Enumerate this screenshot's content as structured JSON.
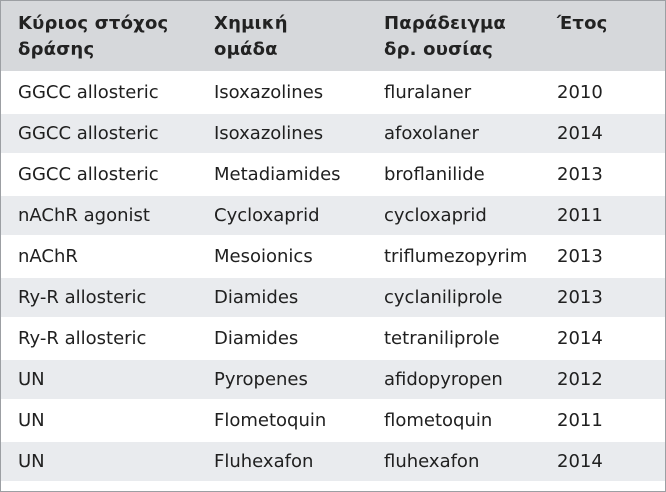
{
  "table": {
    "headers": [
      [
        "Κύριος στόχος",
        "δράσης"
      ],
      [
        "Χημική",
        "ομάδα"
      ],
      [
        "Παράδειγμα",
        "δρ. ουσίας"
      ],
      [
        "Έτος",
        ""
      ]
    ],
    "rows": [
      [
        "GGCC allosteric",
        "Isoxazolines",
        "fluralaner",
        "2010"
      ],
      [
        "GGCC allosteric",
        "Isoxazolines",
        "afoxolaner",
        "2014"
      ],
      [
        "GGCC allosteric",
        "Metadiamides",
        "broflanilide",
        "2013"
      ],
      [
        "nAChR agonist",
        "Cycloxaprid",
        "cycloxaprid",
        "2011"
      ],
      [
        "nAChR",
        "Mesoionics",
        "triflumezopyrim",
        "2013"
      ],
      [
        "Ry-R allosteric",
        "Diamides",
        "cyclaniliprole",
        "2013"
      ],
      [
        "Ry-R allosteric",
        "Diamides",
        "tetraniliprole",
        "2014"
      ],
      [
        "UN",
        "Pyropenes",
        "afidopyropen",
        "2012"
      ],
      [
        "UN",
        "Flometoquin",
        "flometoquin",
        "2011"
      ],
      [
        "UN",
        "Fluhexafon",
        "fluhexafon",
        "2014"
      ]
    ]
  },
  "colors": {
    "header_bg": "#d6d8db",
    "stripe_bg": "#e9ebee",
    "border": "#9c9fa3"
  }
}
